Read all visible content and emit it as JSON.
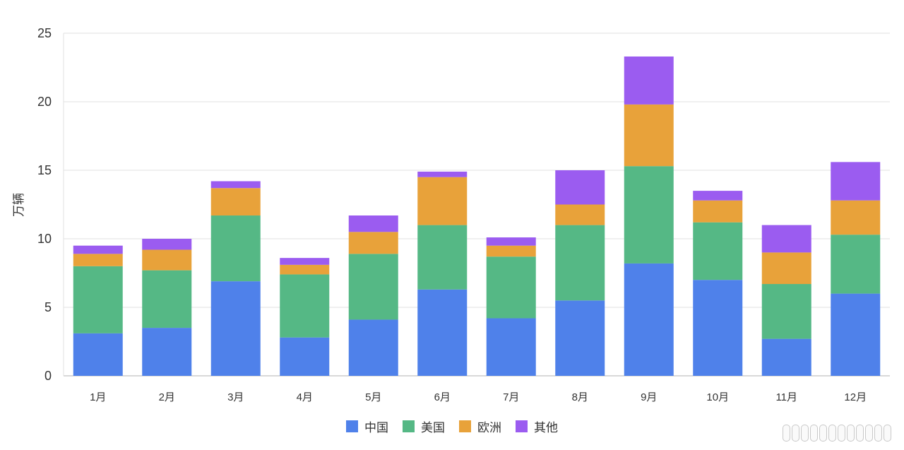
{
  "chart_data": {
    "type": "bar",
    "stacked": true,
    "ylabel": "万辆",
    "ylim": [
      0,
      25
    ],
    "yticks": [
      0,
      5,
      10,
      15,
      20,
      25
    ],
    "grid": true,
    "legend_position": "bottom",
    "categories": [
      "1月",
      "2月",
      "3月",
      "4月",
      "5月",
      "6月",
      "7月",
      "8月",
      "9月",
      "10月",
      "11月",
      "12月"
    ],
    "series": [
      {
        "name": "中国",
        "color": "#4f81ea",
        "values": [
          3.1,
          3.5,
          6.9,
          2.8,
          4.1,
          6.3,
          4.2,
          5.5,
          8.2,
          7.0,
          2.7,
          6.0
        ]
      },
      {
        "name": "美国",
        "color": "#55b885",
        "values": [
          4.9,
          4.2,
          4.8,
          4.6,
          4.8,
          4.7,
          4.5,
          5.5,
          7.1,
          4.2,
          4.0,
          4.3
        ]
      },
      {
        "name": "欧洲",
        "color": "#e8a23a",
        "values": [
          0.9,
          1.5,
          2.0,
          0.7,
          1.6,
          3.5,
          0.8,
          1.5,
          4.5,
          1.6,
          2.3,
          2.5
        ]
      },
      {
        "name": "其他",
        "color": "#9b5cf0",
        "values": [
          0.6,
          0.8,
          0.5,
          0.5,
          1.2,
          0.4,
          0.6,
          2.5,
          3.5,
          0.7,
          2.0,
          2.8
        ]
      }
    ]
  }
}
